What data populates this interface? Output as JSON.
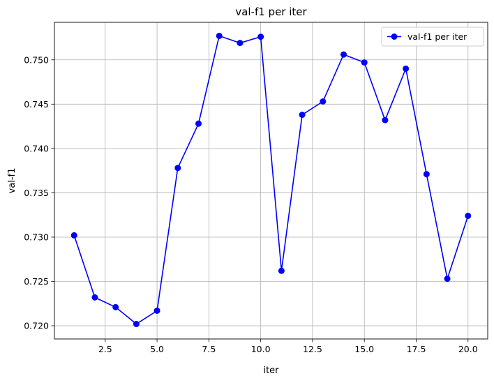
{
  "chart_data": {
    "type": "line",
    "title": "val-f1 per iter",
    "xlabel": "iter",
    "ylabel": "val-f1",
    "xlim": [
      0.05,
      20.95
    ],
    "ylim": [
      0.71851,
      0.75423
    ],
    "xticks": [
      2.5,
      5.0,
      7.5,
      10.0,
      12.5,
      15.0,
      17.5,
      20.0
    ],
    "xtick_labels": [
      "2.5",
      "5.0",
      "7.5",
      "10.0",
      "12.5",
      "15.0",
      "17.5",
      "20.0"
    ],
    "yticks": [
      0.72,
      0.725,
      0.73,
      0.735,
      0.74,
      0.745,
      0.75
    ],
    "ytick_labels": [
      "0.720",
      "0.725",
      "0.730",
      "0.735",
      "0.740",
      "0.745",
      "0.750"
    ],
    "grid": true,
    "legend_position": "upper-right",
    "color": "#0000ff",
    "series": [
      {
        "name": "val-f1 per iter",
        "x": [
          1,
          2,
          3,
          4,
          5,
          6,
          7,
          8,
          9,
          10,
          11,
          12,
          13,
          14,
          15,
          16,
          17,
          18,
          19,
          20
        ],
        "y": [
          0.7302,
          0.7232,
          0.7221,
          0.7202,
          0.7217,
          0.7378,
          0.7428,
          0.7527,
          0.7519,
          0.7526,
          0.7262,
          0.7438,
          0.7453,
          0.7506,
          0.7497,
          0.7432,
          0.749,
          0.7371,
          0.7253,
          0.7324
        ]
      }
    ]
  }
}
